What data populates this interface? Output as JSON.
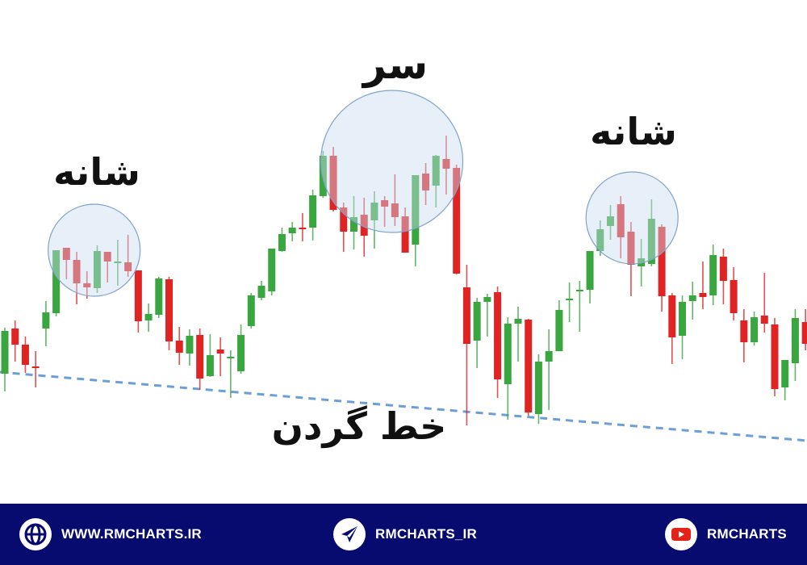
{
  "chart_data": {
    "type": "candlestick",
    "title": "",
    "xlabel": "",
    "ylabel": "",
    "ylim": [
      0,
      600
    ],
    "grid": false,
    "colors": {
      "up": "#3aa63f",
      "down": "#e02424",
      "neckline": "#6a9fd8",
      "highlight_fill": "#c9dcf0",
      "highlight_stroke": "#7fa3cc"
    },
    "ohlc": [
      [
        137,
        194,
        115,
        190
      ],
      [
        193,
        203,
        152,
        173
      ],
      [
        173,
        183,
        138,
        148
      ],
      [
        146,
        165,
        120,
        144
      ],
      [
        193,
        227,
        171,
        213
      ],
      [
        212,
        290,
        208,
        290
      ],
      [
        293,
        293,
        254,
        278
      ],
      [
        278,
        288,
        223,
        249
      ],
      [
        249,
        264,
        230,
        244
      ],
      [
        243,
        296,
        237,
        289
      ],
      [
        288,
        288,
        250,
        276
      ],
      [
        275,
        303,
        246,
        276
      ],
      [
        275,
        309,
        257,
        264
      ],
      [
        265,
        265,
        188,
        202
      ],
      [
        203,
        224,
        189,
        211
      ],
      [
        210,
        257,
        206,
        255
      ],
      [
        254,
        257,
        166,
        177
      ],
      [
        178,
        195,
        148,
        163
      ],
      [
        162,
        192,
        147,
        184
      ],
      [
        185,
        193,
        117,
        131
      ],
      [
        134,
        186,
        133,
        160
      ],
      [
        167,
        182,
        134,
        162
      ],
      [
        157,
        166,
        107,
        158
      ],
      [
        140,
        198,
        137,
        185
      ],
      [
        196,
        237,
        193,
        234
      ],
      [
        231,
        252,
        228,
        246
      ],
      [
        239,
        292,
        234,
        292
      ],
      [
        289,
        318,
        288,
        310
      ],
      [
        311,
        325,
        301,
        318
      ],
      [
        318,
        336,
        301,
        317
      ],
      [
        318,
        365,
        302,
        358
      ],
      [
        357,
        413,
        355,
        407
      ],
      [
        407,
        418,
        338,
        340
      ],
      [
        343,
        349,
        288,
        313
      ],
      [
        313,
        357,
        291,
        331
      ],
      [
        334,
        355,
        282,
        308
      ],
      [
        327,
        363,
        292,
        349
      ],
      [
        352,
        357,
        319,
        344
      ],
      [
        348,
        384,
        320,
        331
      ],
      [
        332,
        343,
        287,
        287
      ],
      [
        297,
        383,
        270,
        383
      ],
      [
        385,
        398,
        346,
        364
      ],
      [
        370,
        408,
        343,
        407
      ],
      [
        403,
        432,
        359,
        391
      ],
      [
        392,
        396,
        260,
        261
      ],
      [
        244,
        272,
        73,
        174
      ],
      [
        178,
        231,
        144,
        226
      ],
      [
        226,
        236,
        183,
        232
      ],
      [
        238,
        245,
        107,
        130
      ],
      [
        124,
        207,
        80,
        199
      ],
      [
        199,
        220,
        152,
        205
      ],
      [
        204,
        205,
        85,
        89
      ],
      [
        87,
        161,
        75,
        152
      ],
      [
        152,
        192,
        92,
        165
      ],
      [
        165,
        228,
        165,
        216
      ],
      [
        229,
        250,
        201,
        230
      ],
      [
        240,
        252,
        189,
        241
      ],
      [
        241,
        289,
        224,
        289
      ],
      [
        289,
        327,
        283,
        316
      ],
      [
        320,
        346,
        303,
        332
      ],
      [
        347,
        357,
        280,
        306
      ],
      [
        313,
        325,
        233,
        272
      ],
      [
        270,
        304,
        245,
        280
      ],
      [
        273,
        353,
        270,
        329
      ],
      [
        319,
        322,
        214,
        233
      ],
      [
        234,
        237,
        149,
        182
      ],
      [
        184,
        234,
        155,
        226
      ],
      [
        227,
        251,
        204,
        234
      ],
      [
        237,
        276,
        217,
        232
      ],
      [
        234,
        297,
        222,
        284
      ],
      [
        282,
        292,
        223,
        252
      ],
      [
        253,
        269,
        203,
        212
      ],
      [
        203,
        217,
        151,
        176
      ],
      [
        176,
        214,
        172,
        207
      ],
      [
        209,
        262,
        188,
        199
      ],
      [
        198,
        206,
        109,
        118
      ],
      [
        120,
        154,
        104,
        154
      ],
      [
        150,
        217,
        128,
        206
      ],
      [
        201,
        217,
        166,
        174
      ]
    ],
    "neckline": [
      [
        -0.5,
        139
      ],
      [
        78.2,
        54
      ]
    ],
    "highlights": [
      {
        "label": "شانه",
        "center_index": 8.7,
        "center_price": 290
      },
      {
        "label": "سر",
        "center_index": 37.7,
        "center_price": 400
      },
      {
        "label": "شانه",
        "center_index": 61.1,
        "center_price": 330
      }
    ],
    "annotations": {
      "left_shoulder": "شانه",
      "head": "سر",
      "right_shoulder": "شانه",
      "neckline": "خط گردن"
    }
  },
  "footer": {
    "background": "#070a6e",
    "items": [
      {
        "icon": "globe-icon",
        "label": "WWW.RMCHARTS.IR"
      },
      {
        "icon": "telegram-icon",
        "label": "RMCHARTS_IR"
      },
      {
        "icon": "youtube-icon",
        "label": "RMCHARTS"
      }
    ]
  }
}
